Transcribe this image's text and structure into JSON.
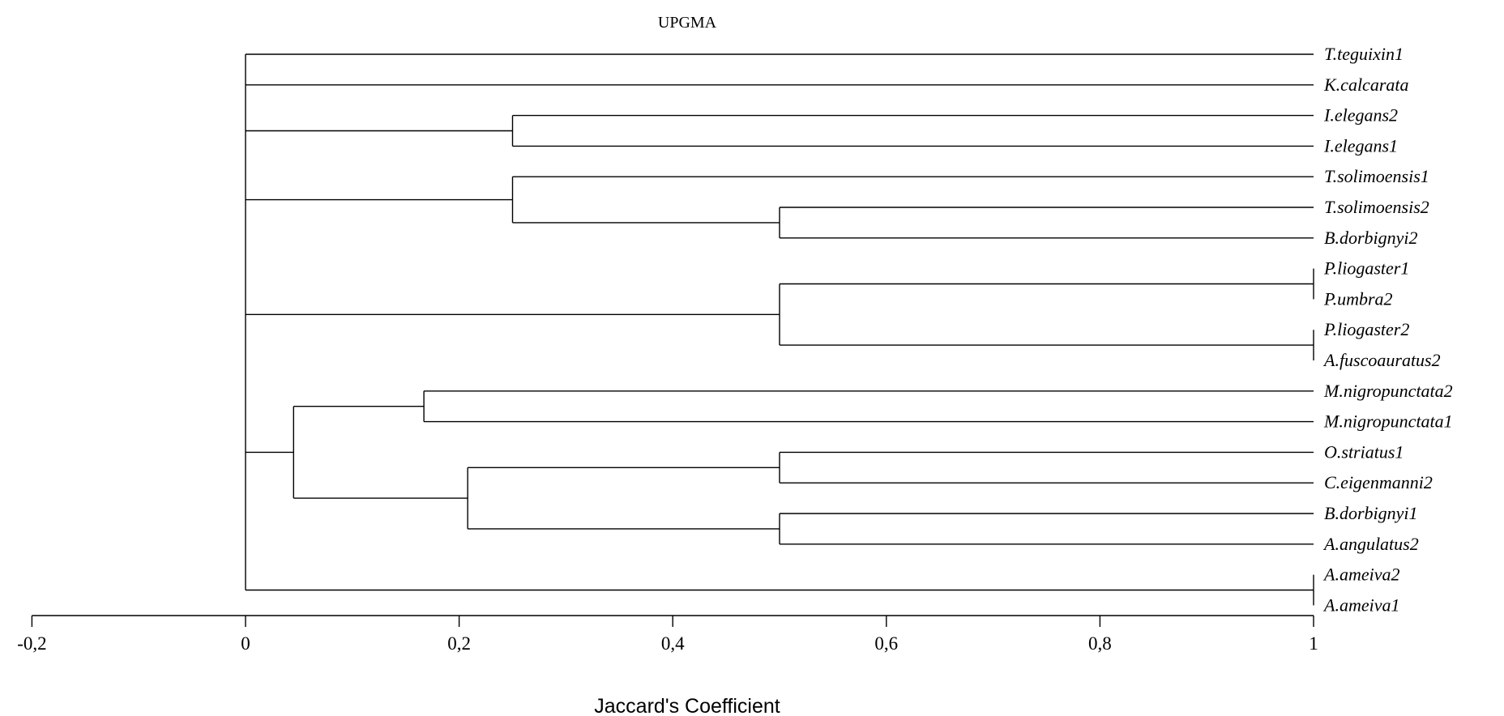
{
  "title": "UPGMA",
  "x_axis": {
    "label": "Jaccard's Coefficient",
    "min": -0.2,
    "max": 1,
    "ticks": [
      {
        "value": -0.2,
        "label": "-0,2"
      },
      {
        "value": 0,
        "label": "0"
      },
      {
        "value": 0.2,
        "label": "0,2"
      },
      {
        "value": 0.4,
        "label": "0,4"
      },
      {
        "value": 0.6,
        "label": "0,6"
      },
      {
        "value": 0.8,
        "label": "0,8"
      },
      {
        "value": 1,
        "label": "1"
      }
    ]
  },
  "leaves": [
    "T.teguixin1",
    "K.calcarata",
    "I.elegans2",
    "I.elegans1",
    "T.solimoensis1",
    "T.solimoensis2",
    "B.dorbignyi2",
    "P.liogaster1",
    "P.umbra2",
    "P.liogaster2",
    "A.fuscoauratus2",
    "M.nigropunctata2",
    "M.nigropunctata1",
    "O.striatus1",
    "C.eigenmanni2",
    "B.dorbignyi1",
    "A.angulatus2",
    "A.ameiva2",
    "A.ameiva1"
  ],
  "tree": {
    "value": 0,
    "children": [
      {
        "leaf": 0
      },
      {
        "leaf": 1
      },
      {
        "value": 0.25,
        "children": [
          {
            "leaf": 2
          },
          {
            "leaf": 3
          }
        ]
      },
      {
        "value": 0.25,
        "children": [
          {
            "leaf": 4
          },
          {
            "value": 0.5,
            "children": [
              {
                "leaf": 5
              },
              {
                "leaf": 6
              }
            ]
          }
        ]
      },
      {
        "value": 0.5,
        "children": [
          {
            "value": 1,
            "children": [
              {
                "leaf": 7
              },
              {
                "leaf": 8
              }
            ]
          },
          {
            "value": 1,
            "children": [
              {
                "leaf": 9
              },
              {
                "leaf": 10
              }
            ]
          }
        ]
      },
      {
        "value": 0.045,
        "children": [
          {
            "value": 0.167,
            "children": [
              {
                "leaf": 11
              },
              {
                "leaf": 12
              }
            ]
          },
          {
            "value": 0.208,
            "children": [
              {
                "value": 0.5,
                "children": [
                  {
                    "leaf": 13
                  },
                  {
                    "leaf": 14
                  }
                ]
              },
              {
                "value": 0.5,
                "children": [
                  {
                    "leaf": 15
                  },
                  {
                    "leaf": 16
                  }
                ]
              }
            ]
          }
        ]
      },
      {
        "value": 1,
        "children": [
          {
            "leaf": 17
          },
          {
            "leaf": 18
          }
        ]
      }
    ]
  }
}
